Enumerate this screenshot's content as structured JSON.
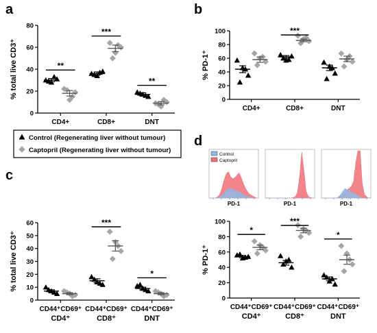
{
  "legend": {
    "items": [
      {
        "label": "Control (Regenerating liver without tumour)",
        "marker": "triangle",
        "color": "#000000"
      },
      {
        "label": "Captopril (Regenerating liver without tumour)",
        "marker": "diamond",
        "color": "#a6a6a6"
      }
    ]
  },
  "colors": {
    "control": "#000000",
    "captopril": "#a6a6a6",
    "hist_control": "#8fb9e6",
    "hist_captopril": "#f06e78"
  },
  "chart_data": [
    {
      "panel": "a",
      "type": "scatter",
      "ylabel": "% total live CD3⁺",
      "ylim": [
        0,
        80
      ],
      "yticks": [
        0,
        20,
        40,
        60,
        80
      ],
      "categories": [
        "CD4+",
        "CD8+",
        "DNT"
      ],
      "category_sub": [
        "",
        "",
        ""
      ],
      "series": [
        {
          "name": "Control (Regenerating liver without tumour)",
          "marker": "triangle",
          "points": [
            [
              30,
              28,
              31,
              29,
              33
            ],
            [
              36,
              34,
              38,
              35,
              37
            ],
            [
              19,
              17,
              15,
              18,
              16
            ]
          ],
          "mean": [
            30,
            36,
            17
          ],
          "sem": [
            1.5,
            1.5,
            1.5
          ]
        },
        {
          "name": "Captopril (Regenerating liver without tumour)",
          "marker": "diamond",
          "points": [
            [
              22,
              12,
              19,
              21,
              15
            ],
            [
              64,
              55,
              60,
              50,
              62
            ],
            [
              9,
              6,
              10,
              8,
              12
            ]
          ],
          "mean": [
            18,
            59,
            9
          ],
          "sem": [
            2.5,
            3,
            1.5
          ]
        }
      ],
      "significance": [
        "**",
        "***",
        "**"
      ]
    },
    {
      "panel": "b",
      "type": "scatter",
      "ylabel": "% PD-1⁺",
      "ylim": [
        0,
        100
      ],
      "yticks": [
        0,
        20,
        40,
        60,
        80,
        100
      ],
      "categories": [
        "CD4+",
        "CD8+",
        "DNT"
      ],
      "category_sub": [
        "",
        "",
        ""
      ],
      "series": [
        {
          "name": "Control (Regenerating liver without tumour)",
          "marker": "triangle",
          "points": [
            [
              57,
              46,
              35,
              25,
              44
            ],
            [
              65,
              57,
              63,
              60,
              58
            ],
            [
              54,
              48,
              38,
              30,
              46
            ]
          ],
          "mean": [
            44,
            62,
            46
          ],
          "sem": [
            5,
            2,
            4
          ]
        },
        {
          "name": "Captopril (Regenerating liver without tumour)",
          "marker": "diamond",
          "points": [
            [
              67,
              60,
              55,
              50,
              62
            ],
            [
              93,
              88,
              85,
              82,
              90
            ],
            [
              67,
              58,
              55,
              48,
              63
            ]
          ],
          "mean": [
            58,
            86,
            59
          ],
          "sem": [
            4,
            2,
            4
          ]
        }
      ],
      "significance": [
        "",
        "***",
        ""
      ]
    },
    {
      "panel": "c",
      "type": "scatter",
      "ylabel": "% total live CD3⁺",
      "ylim": [
        0,
        60
      ],
      "yticks": [
        0,
        10,
        20,
        30,
        40,
        50,
        60
      ],
      "categories": [
        "CD44⁺CD69⁺",
        "CD44⁺CD69⁺",
        "CD44⁺CD69⁺"
      ],
      "category_sub": [
        "CD4⁺",
        "CD8⁺",
        "DNT"
      ],
      "series": [
        {
          "name": "Control (Regenerating liver without tumour)",
          "marker": "triangle",
          "points": [
            [
              10,
              7,
              5,
              8,
              6
            ],
            [
              18,
              14,
              12,
              16,
              13
            ],
            [
              11,
              9,
              7,
              12,
              8
            ]
          ],
          "mean": [
            7,
            15,
            9
          ],
          "sem": [
            1,
            1.5,
            1
          ]
        },
        {
          "name": "Captopril (Regenerating liver without tumour)",
          "marker": "diamond",
          "points": [
            [
              7,
              5,
              4,
              6,
              3
            ],
            [
              53,
              45,
              38,
              32,
              42
            ],
            [
              7,
              5,
              4,
              6,
              3
            ]
          ],
          "mean": [
            5,
            42,
            5
          ],
          "sem": [
            0.8,
            4,
            0.8
          ]
        }
      ],
      "significance": [
        "",
        "***",
        "*"
      ]
    },
    {
      "panel": "d",
      "type": "scatter",
      "ylabel": "% PD-1⁺",
      "ylim": [
        0,
        100
      ],
      "yticks": [
        0,
        20,
        40,
        60,
        80,
        100
      ],
      "categories": [
        "CD44⁺CD69⁺",
        "CD44⁺CD69⁺",
        "CD44⁺CD69⁺"
      ],
      "category_sub": [
        "CD4⁺",
        "CD8⁺",
        "DNT"
      ],
      "series": [
        {
          "name": "Control (Regenerating liver without tumour)",
          "marker": "triangle",
          "points": [
            [
              56,
              52,
              54,
              57,
              53
            ],
            [
              55,
              48,
              40,
              44,
              50
            ],
            [
              30,
              22,
              18,
              27,
              25
            ]
          ],
          "mean": [
            54,
            46,
            25
          ],
          "sem": [
            1.5,
            3,
            2.5
          ]
        },
        {
          "name": "Captopril (Regenerating liver without tumour)",
          "marker": "diamond",
          "points": [
            [
              74,
              69,
              62,
              58,
              66
            ],
            [
              95,
              90,
              85,
              80,
              88
            ],
            [
              68,
              58,
              44,
              35,
              50
            ]
          ],
          "mean": [
            66,
            88,
            50
          ],
          "sem": [
            3,
            3,
            6
          ]
        }
      ],
      "significance": [
        "*",
        "***",
        "*"
      ]
    },
    {
      "panel": "d",
      "type": "area",
      "xlabel": "PD-1",
      "legend": [
        "Control",
        "Captopril"
      ],
      "histograms": [
        {
          "label": "PD-1",
          "control": [
            0,
            0,
            0,
            0,
            0,
            1,
            2,
            4,
            6,
            8,
            8,
            7,
            6,
            6,
            5,
            4,
            3,
            2,
            1,
            1,
            0,
            0,
            0,
            0
          ],
          "captopril": [
            0,
            0,
            0,
            0,
            1,
            3,
            8,
            15,
            20,
            22,
            18,
            16,
            17,
            19,
            21,
            17,
            12,
            8,
            5,
            3,
            2,
            1,
            0,
            0
          ]
        },
        {
          "label": "PD-1",
          "control": [
            0,
            0,
            0,
            0,
            0,
            0,
            0,
            0,
            0,
            0,
            0,
            0,
            0,
            0,
            0,
            0,
            0,
            0,
            0,
            0,
            0,
            0,
            0,
            0
          ],
          "captopril": [
            0,
            0,
            0,
            0,
            0,
            0,
            0,
            0,
            0,
            0,
            0,
            0,
            0,
            1,
            3,
            12,
            45,
            100,
            60,
            15,
            4,
            1,
            0,
            0
          ]
        },
        {
          "label": "PD-1",
          "control": [
            0,
            0,
            0,
            0,
            0,
            0,
            0,
            0,
            1,
            3,
            6,
            8,
            7,
            6,
            5,
            4,
            3,
            2,
            1,
            0,
            0,
            0,
            0,
            0
          ],
          "captopril": [
            0,
            0,
            0,
            0,
            0,
            0,
            0,
            0,
            1,
            2,
            4,
            6,
            7,
            8,
            10,
            14,
            30,
            55,
            42,
            12,
            3,
            1,
            0,
            0
          ]
        }
      ]
    }
  ]
}
